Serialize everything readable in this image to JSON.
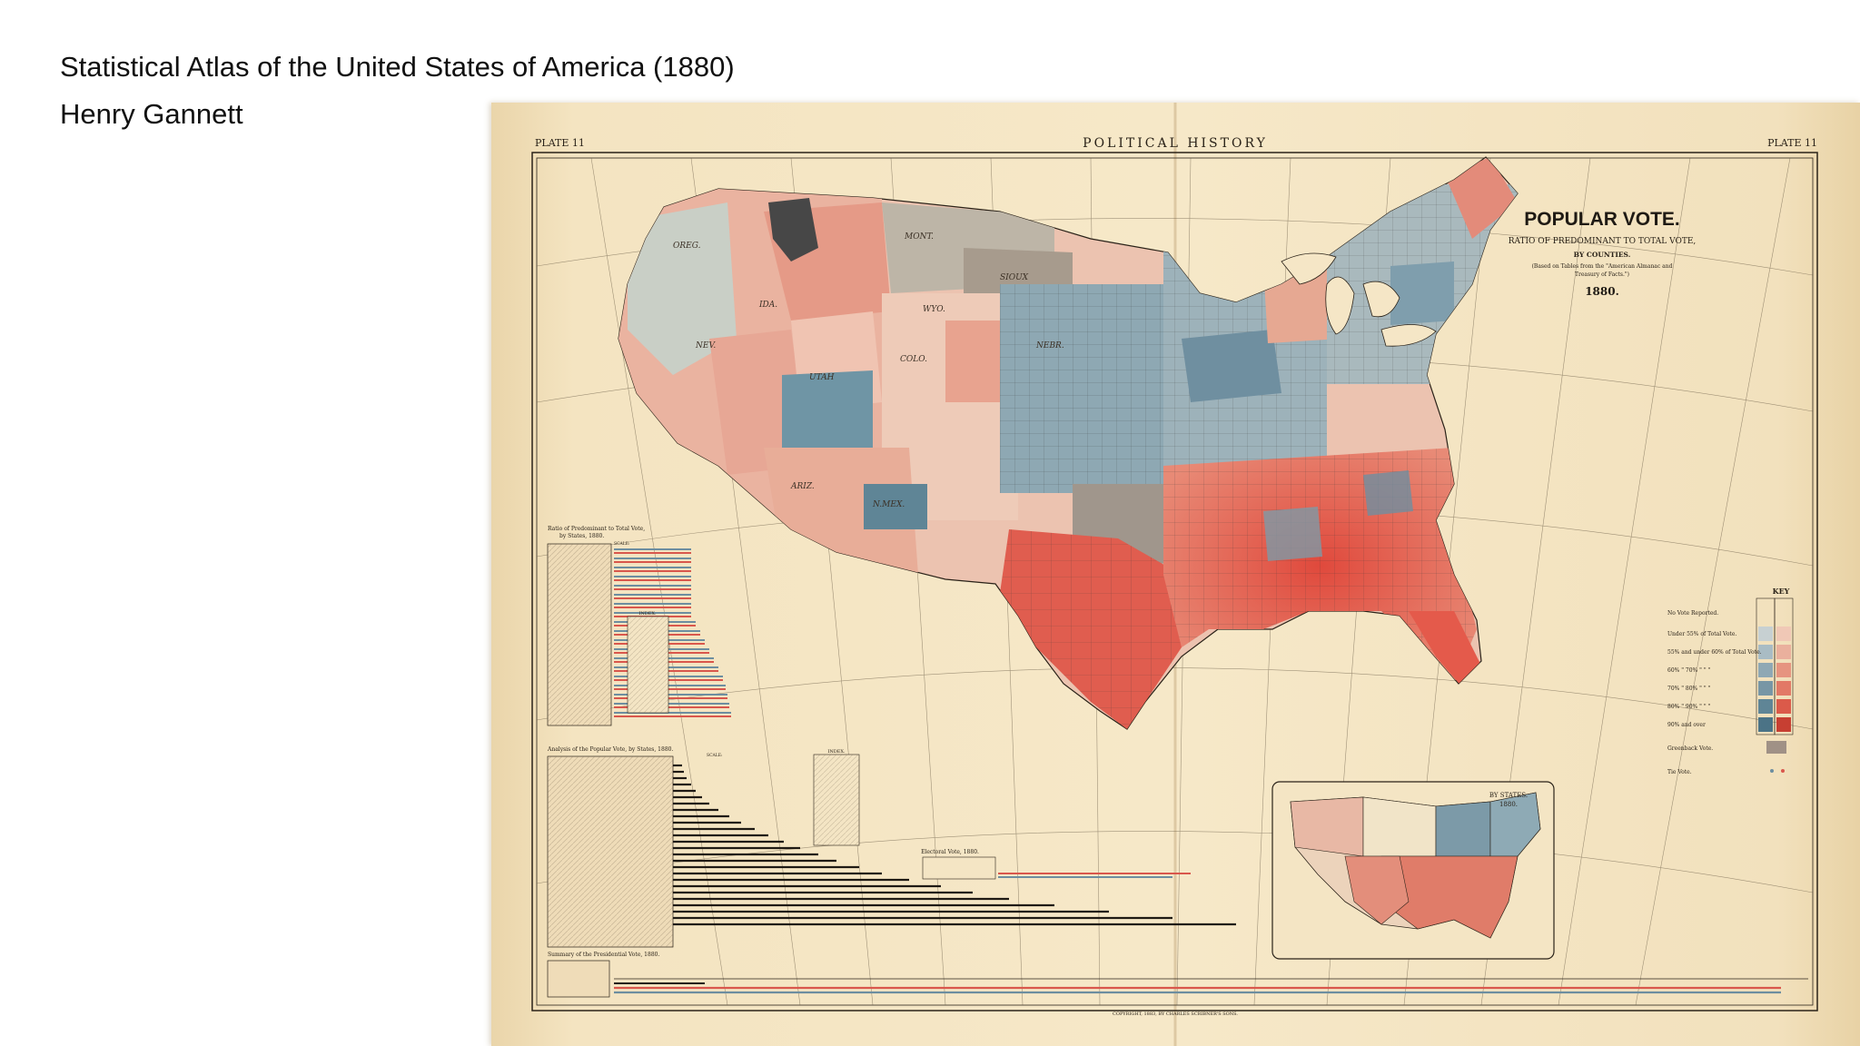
{
  "caption": {
    "title": "Statistical Atlas of the United States of America (1880)",
    "author": "Henry Gannett"
  },
  "plate": {
    "plate_left": "PLATE 11",
    "plate_right": "PLATE 11",
    "header": "POLITICAL HISTORY",
    "map_title": "POPULAR VOTE.",
    "subtitle_1": "RATIO OF PREDOMINANT TO TOTAL VOTE,",
    "subtitle_2": "BY COUNTIES.",
    "source_1": "(Based on Tables from the \"American Almanac and",
    "source_2": "Treasury of Facts.\")",
    "year": "1880.",
    "inset_title": "BY STATES.",
    "inset_year": "1880.",
    "ratio_table_title_1": "Ratio of Predominant to Total Vote,",
    "ratio_table_title_2": "by States, 1880.",
    "analysis_title": "Analysis of the Popular Vote, by States, 1880.",
    "summary_title": "Summary of the Presidential Vote, 1880.",
    "electoral_title": "Electoral Vote, 1880.",
    "index_label": "INDEX.",
    "scale_label": "SCALE:",
    "copyright": "COPYRIGHT, 1883, BY CHARLES SCRIBNER'S SONS.",
    "key": {
      "title": "KEY",
      "items": [
        "No Vote Reported.",
        "Under 55% of Total Vote.",
        "55% and under 60% of Total Vote.",
        "60% \" 70% \" \" \"",
        "70% \" 80% \" \" \"",
        "80% \" 90% \" \" \"",
        "90% and over",
        "Greenback Vote.",
        "Tie Vote."
      ]
    },
    "colors": {
      "paper": "#f5e6c6",
      "democratic": "#d9574c",
      "republican": "#6d8ea0",
      "greenback": "#a09186",
      "ink": "#2a2218"
    }
  }
}
